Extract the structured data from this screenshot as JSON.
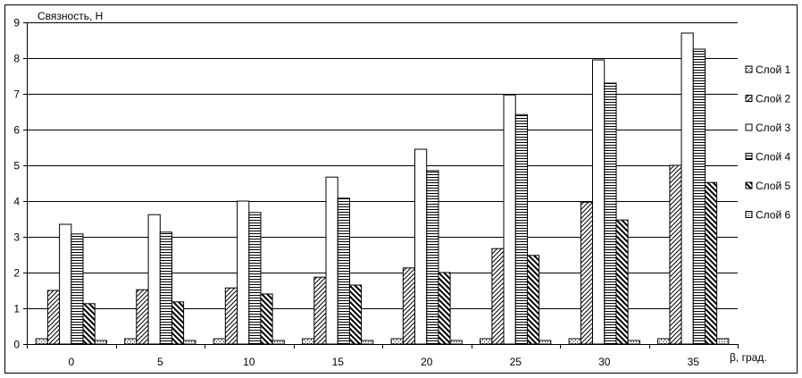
{
  "chart_data": {
    "type": "bar",
    "ylabel": "Связность, Н",
    "xlabel": "β, град.",
    "ylim": [
      0,
      9
    ],
    "yticks": [
      0,
      1,
      2,
      3,
      4,
      5,
      6,
      7,
      8,
      9
    ],
    "grid": true,
    "legend_position": "right",
    "categories": [
      "0",
      "5",
      "10",
      "15",
      "20",
      "25",
      "30",
      "35"
    ],
    "series": [
      {
        "name": "Слой 1",
        "pattern": "dots",
        "values": [
          0.15,
          0.15,
          0.15,
          0.15,
          0.15,
          0.15,
          0.15,
          0.15
        ]
      },
      {
        "name": "Слой 2",
        "pattern": "diag-up",
        "values": [
          1.5,
          1.52,
          1.57,
          1.87,
          2.13,
          2.67,
          3.97,
          5.0
        ]
      },
      {
        "name": "Слой 3",
        "pattern": "blank",
        "values": [
          3.35,
          3.62,
          4.0,
          4.67,
          5.45,
          6.97,
          7.95,
          8.7
        ]
      },
      {
        "name": "Слой 4",
        "pattern": "horizontal",
        "values": [
          3.08,
          3.13,
          3.68,
          4.08,
          4.85,
          6.42,
          7.3,
          8.25
        ]
      },
      {
        "name": "Слой 5",
        "pattern": "diag-down",
        "values": [
          1.13,
          1.18,
          1.4,
          1.65,
          2.0,
          2.48,
          3.47,
          4.52
        ]
      },
      {
        "name": "Слой 6",
        "pattern": "dots-fine",
        "values": [
          0.1,
          0.1,
          0.1,
          0.1,
          0.1,
          0.1,
          0.1,
          0.15
        ]
      }
    ]
  }
}
